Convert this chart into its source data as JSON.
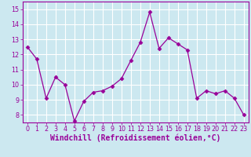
{
  "x": [
    0,
    1,
    2,
    3,
    4,
    5,
    6,
    7,
    8,
    9,
    10,
    11,
    12,
    13,
    14,
    15,
    16,
    17,
    18,
    19,
    20,
    21,
    22,
    23
  ],
  "y": [
    12.5,
    11.7,
    9.1,
    10.5,
    10.0,
    7.6,
    8.9,
    9.5,
    9.6,
    9.9,
    10.4,
    11.6,
    12.8,
    14.8,
    12.4,
    13.1,
    12.7,
    12.3,
    9.1,
    9.6,
    9.4,
    9.6,
    9.1,
    8.0
  ],
  "line_color": "#990099",
  "marker": "D",
  "marker_size": 2.5,
  "bg_color": "#cce8f0",
  "grid_color": "#ffffff",
  "xlabel": "Windchill (Refroidissement éolien,°C)",
  "xlabel_color": "#990099",
  "ylim": [
    7.5,
    15.5
  ],
  "xlim": [
    -0.5,
    23.5
  ],
  "yticks": [
    8,
    9,
    10,
    11,
    12,
    13,
    14,
    15
  ],
  "xticks": [
    0,
    1,
    2,
    3,
    4,
    5,
    6,
    7,
    8,
    9,
    10,
    11,
    12,
    13,
    14,
    15,
    16,
    17,
    18,
    19,
    20,
    21,
    22,
    23
  ],
  "tick_color": "#990099",
  "tick_fontsize": 5.8,
  "xlabel_fontsize": 7.0,
  "spine_color": "#990099"
}
